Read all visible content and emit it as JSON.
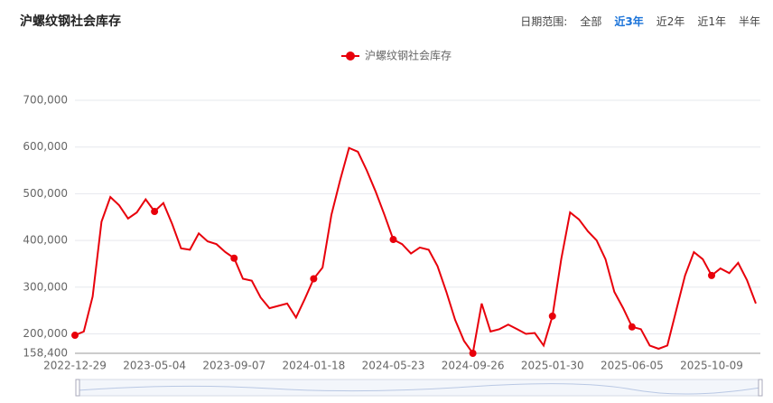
{
  "header": {
    "title": "沪螺纹钢社会库存",
    "range_label": "日期范围:",
    "range_options": [
      "全部",
      "近3年",
      "近2年",
      "近1年",
      "半年"
    ]
  },
  "chart_data": {
    "type": "line",
    "categories": [
      "2022-12-29",
      null,
      null,
      null,
      null,
      null,
      null,
      null,
      null,
      "2023-05-04",
      null,
      null,
      null,
      null,
      null,
      null,
      null,
      null,
      "2023-09-07",
      null,
      null,
      null,
      null,
      null,
      null,
      null,
      null,
      "2024-01-18",
      null,
      null,
      null,
      null,
      null,
      null,
      null,
      null,
      "2024-05-23",
      null,
      null,
      null,
      null,
      null,
      null,
      null,
      null,
      "2024-09-26",
      null,
      null,
      null,
      null,
      null,
      null,
      null,
      null,
      "2025-01-30",
      null,
      null,
      null,
      null,
      null,
      null,
      null,
      null,
      "2025-06-05",
      null,
      null,
      null,
      null,
      null,
      null,
      null,
      null,
      "2025-10-09",
      null,
      null,
      null,
      null,
      null
    ],
    "series": [
      {
        "name": "沪螺纹钢社会库存",
        "color": "#e8000b",
        "values": [
          197000,
          205000,
          280000,
          440000,
          493000,
          475000,
          447000,
          460000,
          488000,
          462000,
          480000,
          435000,
          383000,
          380000,
          415000,
          398000,
          392000,
          375000,
          362000,
          318000,
          314000,
          278000,
          255000,
          260000,
          265000,
          235000,
          275000,
          318000,
          342000,
          455000,
          530000,
          598000,
          590000,
          550000,
          505000,
          455000,
          402000,
          392000,
          372000,
          385000,
          380000,
          345000,
          290000,
          230000,
          185000,
          158400,
          265000,
          205000,
          210000,
          220000,
          210000,
          200000,
          202000,
          175000,
          238000,
          360000,
          460000,
          445000,
          420000,
          400000,
          360000,
          290000,
          255000,
          215000,
          210000,
          175000,
          168000,
          175000,
          250000,
          325000,
          375000,
          360000,
          325000,
          340000,
          330000,
          352000,
          315000,
          265000
        ]
      }
    ],
    "ylim": [
      158400,
      700000
    ],
    "yticks": [
      {
        "value": 158400,
        "label": "158,400"
      },
      {
        "value": 200000,
        "label": "200,000"
      },
      {
        "value": 300000,
        "label": "300,000"
      },
      {
        "value": 400000,
        "label": "400,000"
      },
      {
        "value": 500000,
        "label": "500,000"
      },
      {
        "value": 600000,
        "label": "600,000"
      },
      {
        "value": 700000,
        "label": "700,000"
      }
    ],
    "grid": true,
    "legend": "top"
  }
}
